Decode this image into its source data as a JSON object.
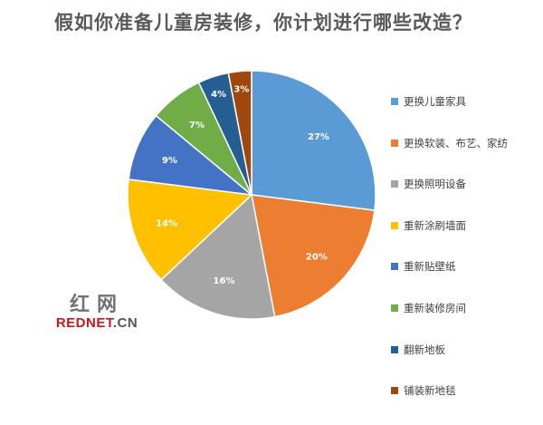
{
  "chart_data": {
    "type": "pie",
    "title": "假如你准备儿童房装修，你计划进行哪些改造？",
    "categories": [
      "更换儿童家具",
      "更换软装、布艺、家纺",
      "更换照明设备",
      "重新涂刷墙面",
      "重新贴壁纸",
      "重新装修房间",
      "翻新地板",
      "铺装新地毯"
    ],
    "values": [
      27,
      20,
      16,
      14,
      9,
      7,
      4,
      3
    ],
    "data_labels": [
      "27%",
      "20%",
      "16%",
      "14%",
      "9%",
      "7%",
      "4%",
      "3%"
    ],
    "colors": [
      "#5B9BD5",
      "#ED7D31",
      "#A5A5A5",
      "#FFC000",
      "#4472C4",
      "#70AD47",
      "#255E91",
      "#9E480E"
    ],
    "legend_position": "right",
    "start": "12 o'clock, clockwise"
  },
  "watermark": {
    "chinese": "红网",
    "english_red": "REDNET",
    "english_grey": ".CN"
  }
}
